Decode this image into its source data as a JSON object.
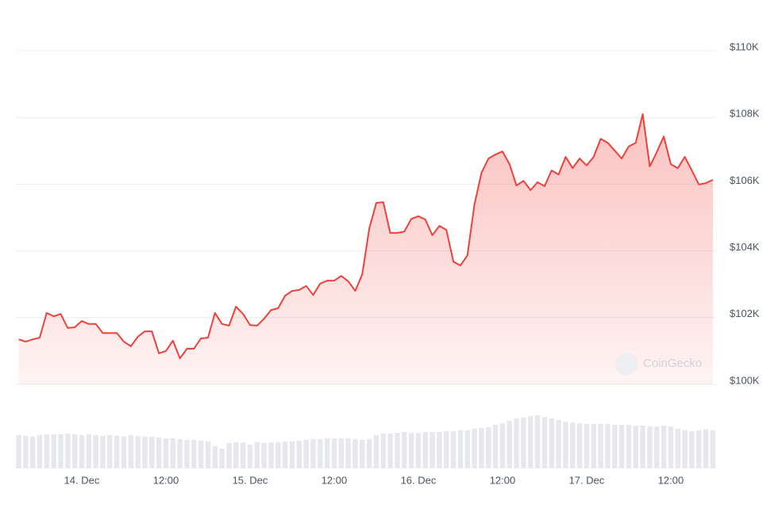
{
  "chart_data": {
    "type": "line",
    "color": "#f0403a",
    "grid": true,
    "watermark": "CoinGecko",
    "categories": [
      null,
      null,
      null,
      null,
      null,
      null,
      null,
      null,
      null,
      "14. Dec",
      null,
      null,
      null,
      null,
      null,
      null,
      null,
      null,
      null,
      null,
      null,
      "12:00",
      null,
      null,
      null,
      null,
      null,
      null,
      null,
      null,
      null,
      null,
      null,
      "15. Dec",
      null,
      null,
      null,
      null,
      null,
      null,
      null,
      null,
      null,
      null,
      null,
      "12:00",
      null,
      null,
      null,
      null,
      null,
      null,
      null,
      null,
      null,
      null,
      null,
      "16. Dec",
      null,
      null,
      null,
      null,
      null,
      null,
      null,
      null,
      null,
      null,
      null,
      "12:00",
      null,
      null,
      null,
      null,
      null,
      null,
      null,
      null,
      null,
      null,
      null,
      "17. Dec",
      null,
      null,
      null,
      null,
      null,
      null,
      null,
      null,
      null,
      null,
      null,
      "12:00",
      null,
      null,
      null,
      null,
      null,
      null
    ],
    "values": [
      101350,
      101280,
      101350,
      101400,
      102140,
      102040,
      102110,
      101690,
      101710,
      101900,
      101810,
      101810,
      101540,
      101540,
      101540,
      101280,
      101140,
      101430,
      101590,
      101590,
      100930,
      101000,
      101310,
      100780,
      101070,
      101070,
      101380,
      101400,
      102140,
      101810,
      101760,
      102330,
      102110,
      101780,
      101760,
      101970,
      102230,
      102280,
      102660,
      102800,
      102830,
      102950,
      102680,
      103020,
      103110,
      103110,
      103250,
      103090,
      102800,
      103300,
      104680,
      105440,
      105460,
      104540,
      104540,
      104580,
      104960,
      105040,
      104940,
      104470,
      104750,
      104630,
      103680,
      103560,
      103870,
      105390,
      106340,
      106770,
      106890,
      106980,
      106600,
      105960,
      106100,
      105820,
      106060,
      105940,
      106410,
      106290,
      106820,
      106480,
      106770,
      106560,
      106820,
      107360,
      107240,
      107010,
      106770,
      107130,
      107240,
      108100,
      106530,
      106960,
      107430,
      106600,
      106480,
      106820,
      106410,
      105990,
      106030,
      106130
    ],
    "volume": {
      "color": "#e7e8ec",
      "values": [
        42,
        41,
        40,
        42,
        43,
        43,
        43,
        44,
        43,
        42,
        43,
        42,
        41,
        42,
        41,
        40,
        42,
        41,
        40,
        40,
        39,
        38,
        38,
        37,
        36,
        36,
        35,
        34,
        28,
        25,
        32,
        33,
        33,
        30,
        33,
        32,
        33,
        33,
        34,
        34,
        35,
        36,
        37,
        37,
        38,
        38,
        38,
        38,
        37,
        36,
        37,
        42,
        44,
        44,
        45,
        46,
        45,
        45,
        46,
        46,
        46,
        47,
        47,
        48,
        48,
        50,
        51,
        52,
        55,
        57,
        60,
        63,
        64,
        66,
        67,
        65,
        63,
        61,
        59,
        58,
        57,
        56,
        56,
        56,
        56,
        55,
        55,
        55,
        54,
        54,
        53,
        53,
        54,
        53,
        50,
        48,
        47,
        48,
        49,
        48
      ]
    },
    "ylim": [
      100000,
      110000
    ],
    "yticks": [
      {
        "value": 100000,
        "label": "$100K"
      },
      {
        "value": 102000,
        "label": "$102K"
      },
      {
        "value": 104000,
        "label": "$104K"
      },
      {
        "value": 106000,
        "label": "$106K"
      },
      {
        "value": 108000,
        "label": "$108K"
      },
      {
        "value": 110000,
        "label": "$110K"
      }
    ]
  }
}
